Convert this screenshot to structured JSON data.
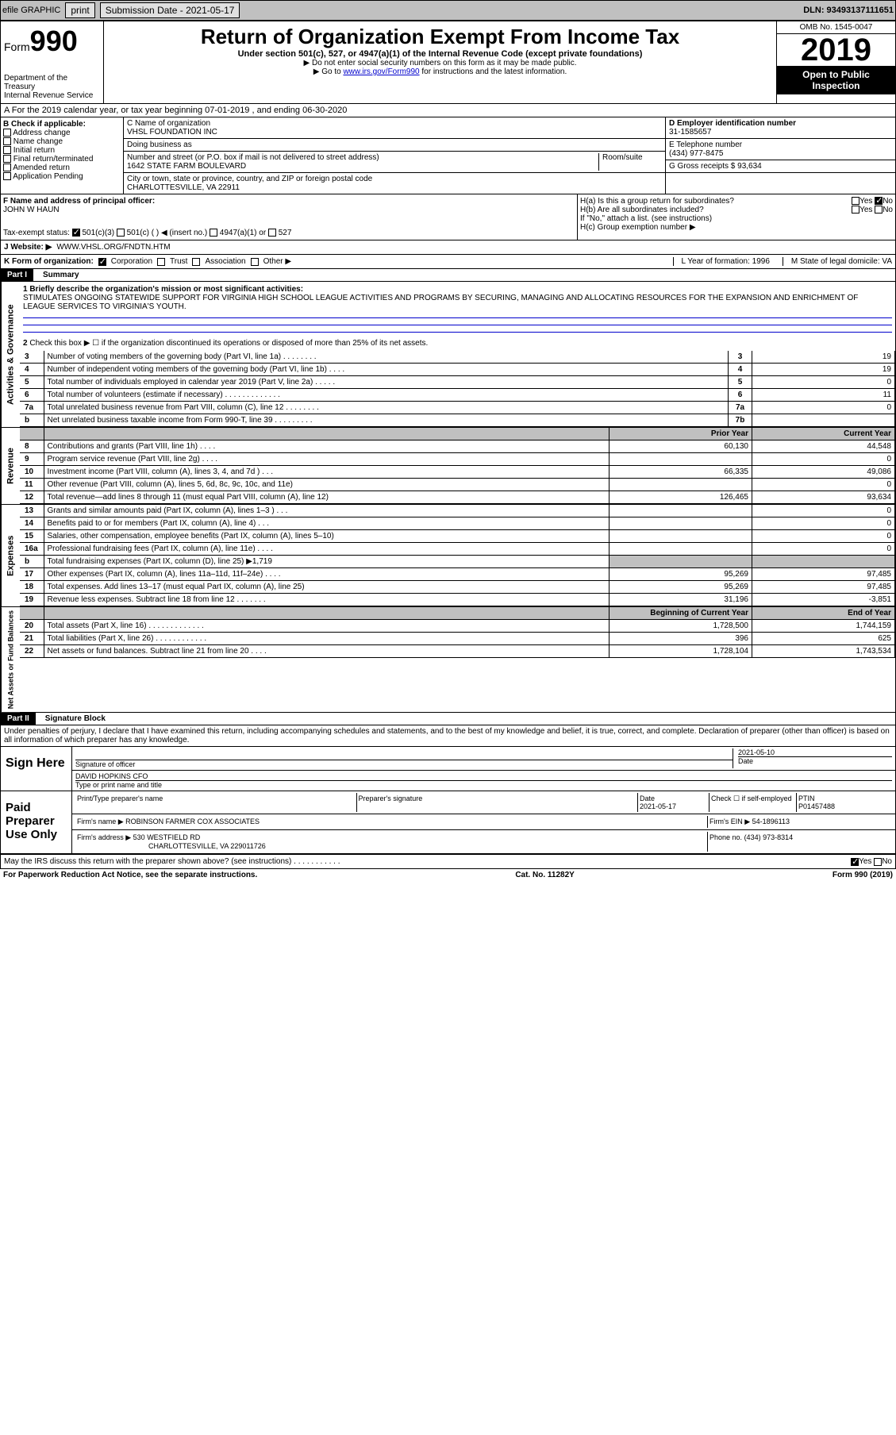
{
  "topbar": {
    "efile": "efile GRAPHIC",
    "print": "print",
    "sub_label": "Submission Date - 2021-05-17",
    "dln": "DLN: 93493137111651"
  },
  "header": {
    "form_prefix": "Form",
    "form_number": "990",
    "dept": "Department of the Treasury",
    "irs": "Internal Revenue Service",
    "title": "Return of Organization Exempt From Income Tax",
    "sub1": "Under section 501(c), 527, or 4947(a)(1) of the Internal Revenue Code (except private foundations)",
    "sub2": "▶ Do not enter social security numbers on this form as it may be made public.",
    "sub3_pre": "▶ Go to ",
    "sub3_link": "www.irs.gov/Form990",
    "sub3_post": " for instructions and the latest information.",
    "omb": "OMB No. 1545-0047",
    "year": "2019",
    "open": "Open to Public",
    "inspection": "Inspection"
  },
  "line_a": "A For the 2019 calendar year, or tax year beginning 07-01-2019    , and ending 06-30-2020",
  "check_b": {
    "title": "B Check if applicable:",
    "opts": [
      "Address change",
      "Name change",
      "Initial return",
      "Final return/terminated",
      "Amended return",
      "Application Pending"
    ]
  },
  "block_c": {
    "name_label": "C Name of organization",
    "name": "VHSL FOUNDATION INC",
    "dba_label": "Doing business as",
    "dba": "",
    "addr_label": "Number and street (or P.O. box if mail is not delivered to street address)",
    "room_label": "Room/suite",
    "addr": "1642 STATE FARM BOULEVARD",
    "city_label": "City or town, state or province, country, and ZIP or foreign postal code",
    "city": "CHARLOTTESVILLE, VA  22911"
  },
  "block_d": {
    "ein_label": "D Employer identification number",
    "ein": "31-1585657",
    "tel_label": "E Telephone number",
    "tel": "(434) 977-8475",
    "gross_label": "G Gross receipts $ 93,634"
  },
  "block_f": {
    "label": "F  Name and address of principal officer:",
    "name": "JOHN W HAUN"
  },
  "block_h": {
    "ha": "H(a)  Is this a group return for subordinates?",
    "hb": "H(b)  Are all subordinates included?",
    "hb_note": "If \"No,\" attach a list. (see instructions)",
    "hc": "H(c)  Group exemption number ▶",
    "yes": "Yes",
    "no": "No"
  },
  "tax_exempt": {
    "label": "Tax-exempt status:",
    "opt1": "501(c)(3)",
    "opt2": "501(c) (  ) ◀ (insert no.)",
    "opt3": "4947(a)(1) or",
    "opt4": "527"
  },
  "website": {
    "label": "J  Website: ▶",
    "value": "WWW.VHSL.ORG/FNDTN.HTM"
  },
  "line_k": {
    "label": "K Form of organization:",
    "corp": "Corporation",
    "trust": "Trust",
    "assoc": "Association",
    "other": "Other ▶",
    "l_label": "L Year of formation: 1996",
    "m_label": "M State of legal domicile: VA"
  },
  "part1": {
    "hdr": "Part I",
    "title": "Summary",
    "q1_label": "1  Briefly describe the organization's mission or most significant activities:",
    "q1_text": "STIMULATES ONGOING STATEWIDE SUPPORT FOR VIRGINIA HIGH SCHOOL LEAGUE ACTIVITIES AND PROGRAMS BY SECURING, MANAGING AND ALLOCATING RESOURCES FOR THE EXPANSION AND ENRICHMENT OF LEAGUE SERVICES TO VIRGINIA'S YOUTH.",
    "q2": "Check this box ▶ ☐  if the organization discontinued its operations or disposed of more than 25% of its net assets.",
    "rows_gov": [
      {
        "n": "3",
        "desc": "Number of voting members of the governing body (Part VI, line 1a)   .   .   .   .   .   .   .   .",
        "box": "3",
        "val": "19"
      },
      {
        "n": "4",
        "desc": "Number of independent voting members of the governing body (Part VI, line 1b)  .   .   .   .",
        "box": "4",
        "val": "19"
      },
      {
        "n": "5",
        "desc": "Total number of individuals employed in calendar year 2019 (Part V, line 2a)  .   .   .   .   .",
        "box": "5",
        "val": "0"
      },
      {
        "n": "6",
        "desc": "Total number of volunteers (estimate if necessary)    .   .   .   .   .   .   .   .   .   .   .   .   .",
        "box": "6",
        "val": "11"
      },
      {
        "n": "7a",
        "desc": "Total unrelated business revenue from Part VIII, column (C), line 12   .   .   .   .   .   .   .   .",
        "box": "7a",
        "val": "0"
      },
      {
        "n": "b",
        "desc": "Net unrelated business taxable income from Form 990-T, line 39    .   .   .   .   .   .   .   .   .",
        "box": "7b",
        "val": ""
      }
    ],
    "col_prior": "Prior Year",
    "col_current": "Current Year",
    "rows_rev": [
      {
        "n": "8",
        "desc": "Contributions and grants (Part VIII, line 1h)   .   .   .   .",
        "p": "60,130",
        "c": "44,548"
      },
      {
        "n": "9",
        "desc": "Program service revenue (Part VIII, line 2g)   .   .   .   .",
        "p": "",
        "c": "0"
      },
      {
        "n": "10",
        "desc": "Investment income (Part VIII, column (A), lines 3, 4, and 7d )   .   .   .",
        "p": "66,335",
        "c": "49,086"
      },
      {
        "n": "11",
        "desc": "Other revenue (Part VIII, column (A), lines 5, 6d, 8c, 9c, 10c, and 11e)",
        "p": "",
        "c": "0"
      },
      {
        "n": "12",
        "desc": "Total revenue—add lines 8 through 11 (must equal Part VIII, column (A), line 12)",
        "p": "126,465",
        "c": "93,634"
      }
    ],
    "rows_exp": [
      {
        "n": "13",
        "desc": "Grants and similar amounts paid (Part IX, column (A), lines 1–3 )  .   .   .",
        "p": "",
        "c": "0"
      },
      {
        "n": "14",
        "desc": "Benefits paid to or for members (Part IX, column (A), line 4)   .   .   .",
        "p": "",
        "c": "0"
      },
      {
        "n": "15",
        "desc": "Salaries, other compensation, employee benefits (Part IX, column (A), lines 5–10)",
        "p": "",
        "c": "0"
      },
      {
        "n": "16a",
        "desc": "Professional fundraising fees (Part IX, column (A), line 11e)  .   .   .   .",
        "p": "",
        "c": "0"
      },
      {
        "n": "b",
        "desc": "Total fundraising expenses (Part IX, column (D), line 25) ▶1,719",
        "p": "GRAY",
        "c": "GRAY"
      },
      {
        "n": "17",
        "desc": "Other expenses (Part IX, column (A), lines 11a–11d, 11f–24e)  .   .   .   .",
        "p": "95,269",
        "c": "97,485"
      },
      {
        "n": "18",
        "desc": "Total expenses. Add lines 13–17 (must equal Part IX, column (A), line 25)",
        "p": "95,269",
        "c": "97,485"
      },
      {
        "n": "19",
        "desc": "Revenue less expenses. Subtract line 18 from line 12  .   .   .   .   .   .   .",
        "p": "31,196",
        "c": "-3,851"
      }
    ],
    "col_begin": "Beginning of Current Year",
    "col_end": "End of Year",
    "rows_net": [
      {
        "n": "20",
        "desc": "Total assets (Part X, line 16)  .   .   .   .   .   .   .   .   .   .   .   .   .",
        "p": "1,728,500",
        "c": "1,744,159"
      },
      {
        "n": "21",
        "desc": "Total liabilities (Part X, line 26)  .   .   .   .   .   .   .   .   .   .   .   .",
        "p": "396",
        "c": "625"
      },
      {
        "n": "22",
        "desc": "Net assets or fund balances. Subtract line 21 from line 20   .   .   .   .",
        "p": "1,728,104",
        "c": "1,743,534"
      }
    ],
    "side_gov": "Activities & Governance",
    "side_rev": "Revenue",
    "side_exp": "Expenses",
    "side_net": "Net Assets or Fund Balances"
  },
  "part2": {
    "hdr": "Part II",
    "title": "Signature Block",
    "decl": "Under penalties of perjury, I declare that I have examined this return, including accompanying schedules and statements, and to the best of my knowledge and belief, it is true, correct, and complete. Declaration of preparer (other than officer) is based on all information of which preparer has any knowledge.",
    "sign_here": "Sign Here",
    "sig_officer": "Signature of officer",
    "sig_date": "2021-05-10",
    "date_label": "Date",
    "officer_name": "DAVID HOPKINS CFO",
    "officer_label": "Type or print name and title",
    "paid": "Paid Preparer Use Only",
    "prep_name_label": "Print/Type preparer's name",
    "prep_sig_label": "Preparer's signature",
    "prep_date_label": "Date",
    "prep_date": "2021-05-17",
    "prep_check": "Check ☐ if self-employed",
    "ptin_label": "PTIN",
    "ptin": "P01457488",
    "firm_name_label": "Firm's name    ▶",
    "firm_name": "ROBINSON FARMER COX ASSOCIATES",
    "firm_ein_label": "Firm's EIN ▶",
    "firm_ein": "54-1896113",
    "firm_addr_label": "Firm's address ▶",
    "firm_addr1": "530 WESTFIELD RD",
    "firm_addr2": "CHARLOTTESVILLE, VA  229011726",
    "phone_label": "Phone no.",
    "phone": "(434) 973-8314",
    "discuss": "May the IRS discuss this return with the preparer shown above? (see instructions)   .   .   .   .   .   .   .   .   .   .   .",
    "yes": "Yes",
    "no": "No"
  },
  "footer": {
    "left": "For Paperwork Reduction Act Notice, see the separate instructions.",
    "mid": "Cat. No. 11282Y",
    "right": "Form 990 (2019)"
  }
}
